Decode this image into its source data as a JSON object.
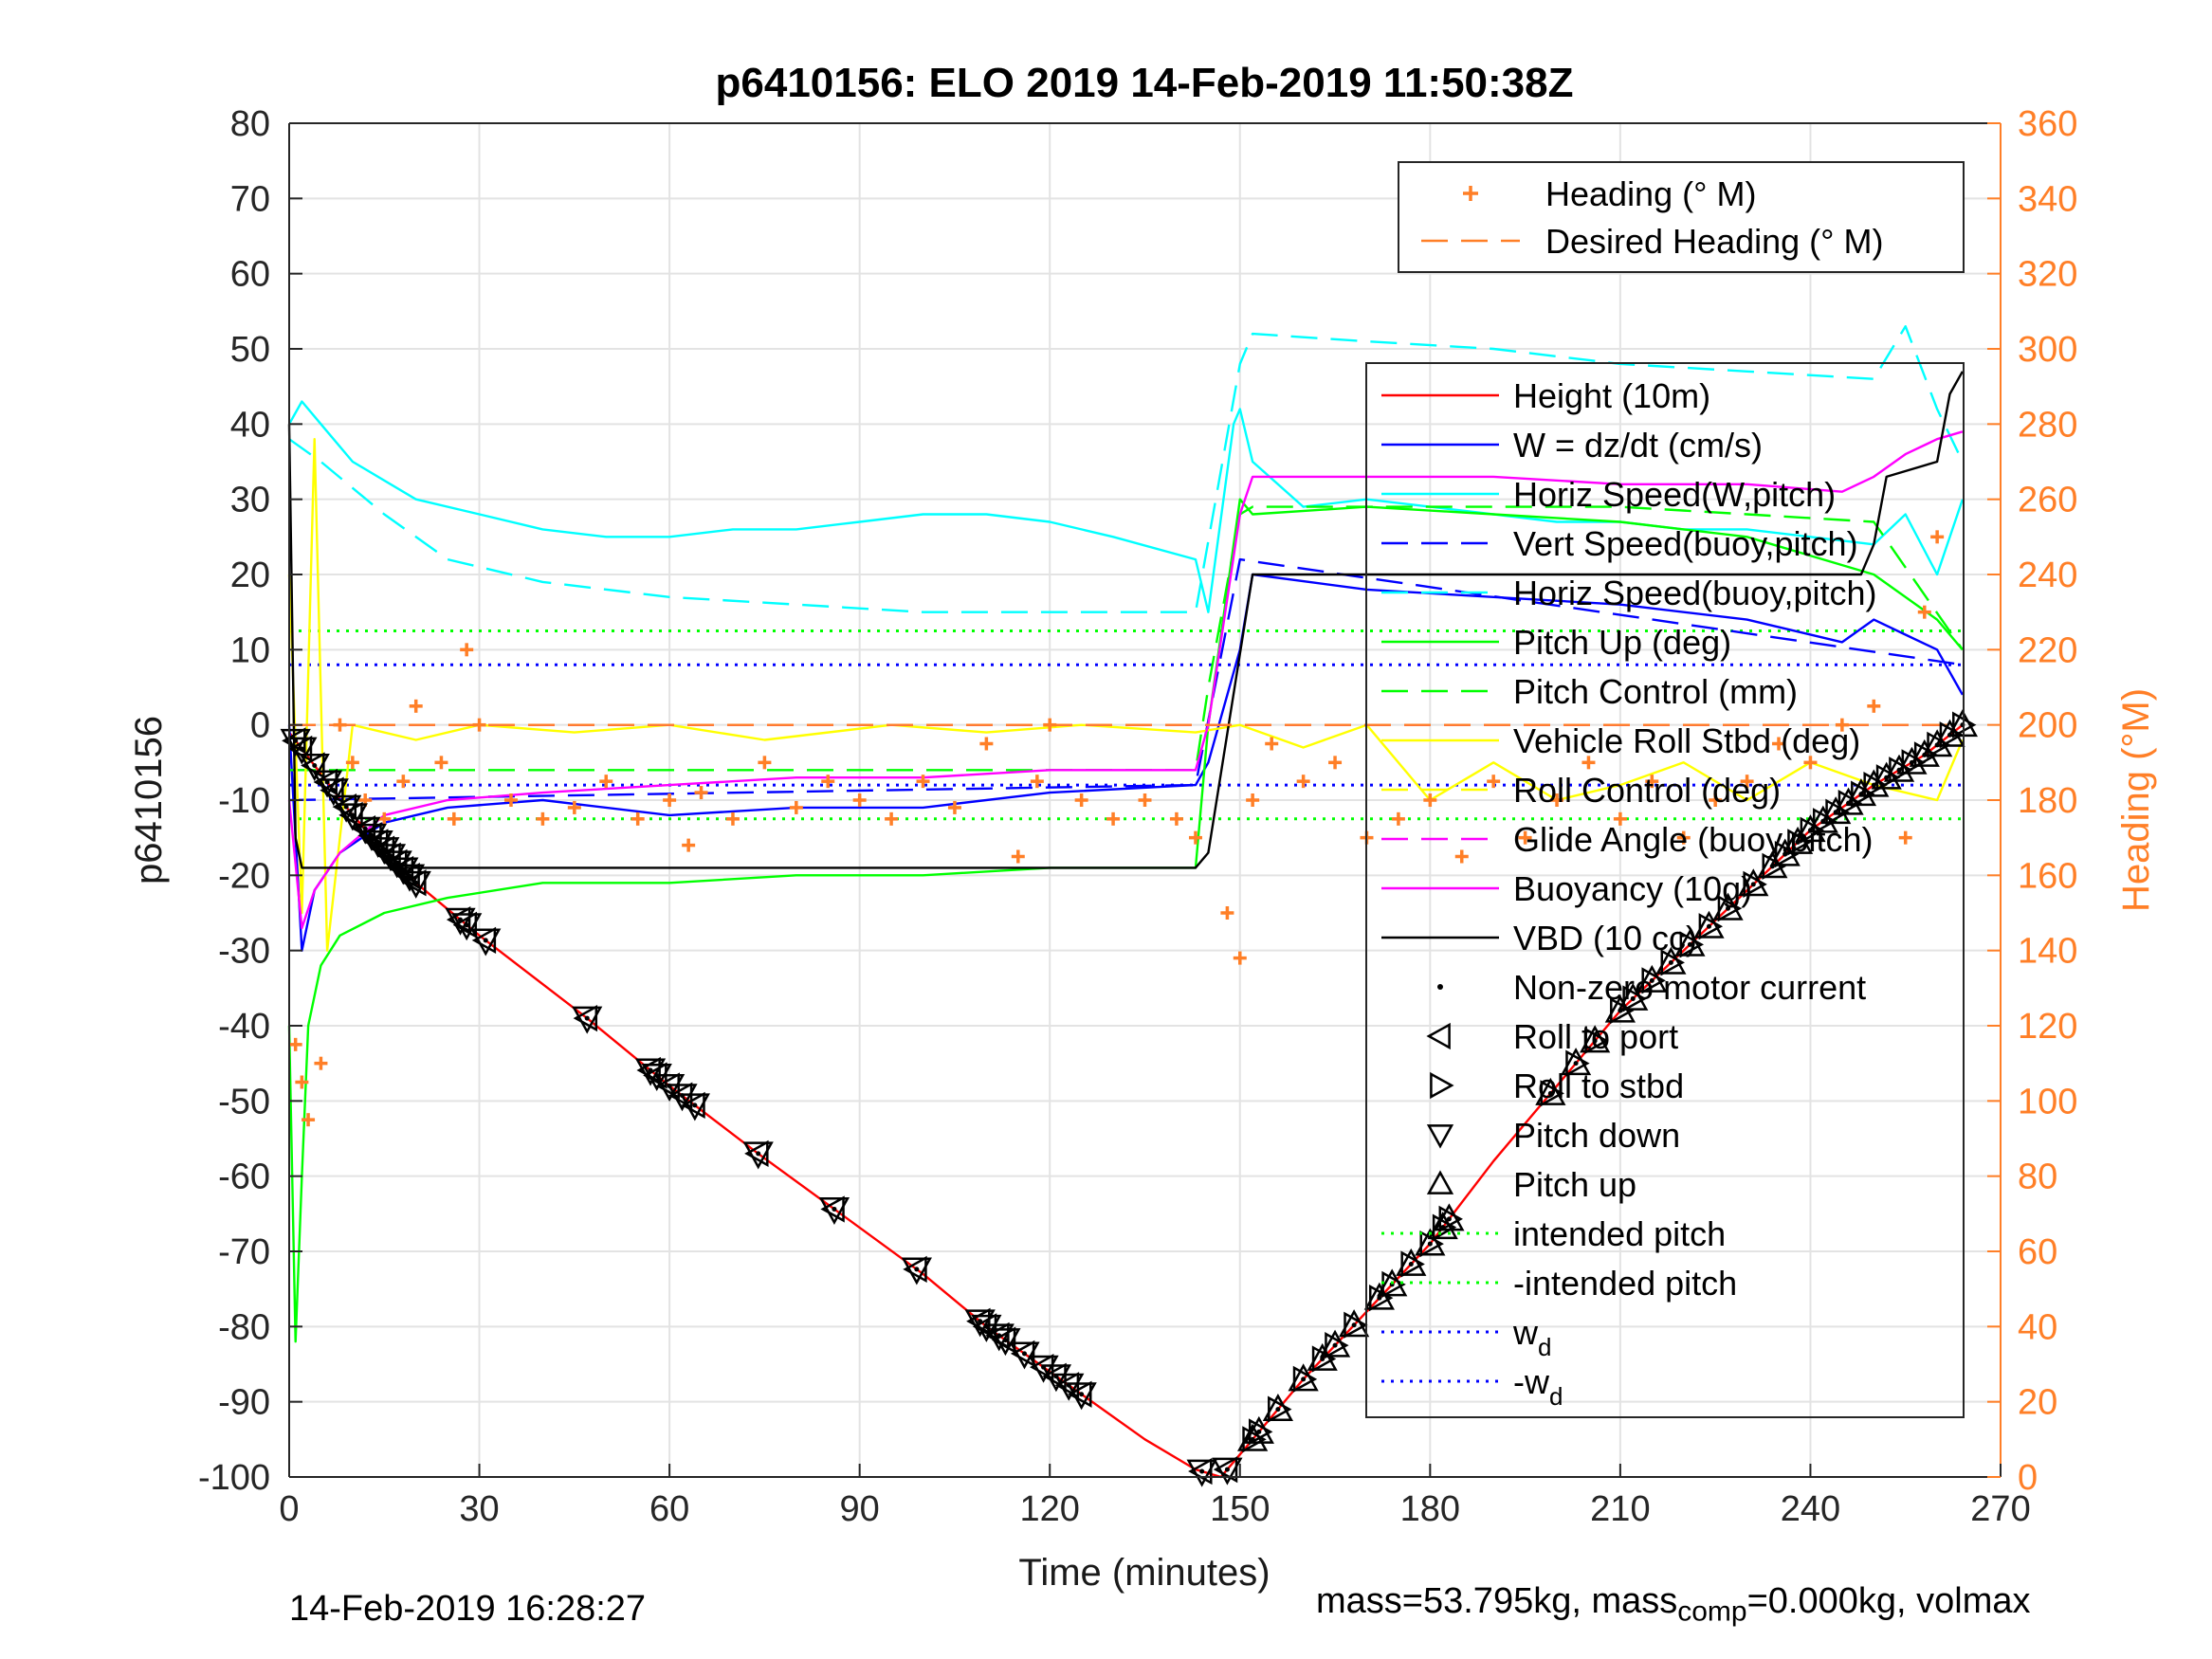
{
  "chart_data": {
    "type": "line",
    "title": "p6410156: ELO 2019 14-Feb-2019 11:50:38Z",
    "xlabel": "Time (minutes)",
    "ylabel": "p6410156",
    "y2label": "Heading (°M)",
    "xlim": [
      0,
      270
    ],
    "ylim": [
      -100,
      80
    ],
    "y2lim": [
      0,
      360
    ],
    "xticks": [
      0,
      30,
      60,
      90,
      120,
      150,
      180,
      210,
      240,
      270
    ],
    "yticks": [
      -100,
      -90,
      -80,
      -70,
      -60,
      -50,
      -40,
      -30,
      -20,
      -10,
      0,
      10,
      20,
      30,
      40,
      50,
      60,
      70,
      80
    ],
    "y2ticks": [
      0,
      20,
      40,
      60,
      80,
      100,
      120,
      140,
      160,
      180,
      200,
      220,
      240,
      260,
      280,
      300,
      320,
      340,
      360
    ],
    "grid": true,
    "legend_top": [
      {
        "label": "Heading (° M)",
        "color": "#ff7f27",
        "style": "plus"
      },
      {
        "label": "Desired Heading (° M)",
        "color": "#ff7f27",
        "style": "dash"
      }
    ],
    "legend_main": [
      {
        "label": "Height (10m)",
        "color": "#ff0000",
        "style": "solid"
      },
      {
        "label": "W = dz/dt (cm/s)",
        "color": "#0000ff",
        "style": "solid"
      },
      {
        "label": "Horiz Speed(W,pitch)",
        "color": "#00ffff",
        "style": "solid"
      },
      {
        "label": "Vert Speed(buoy,pitch)",
        "color": "#0000ff",
        "style": "dash"
      },
      {
        "label": "Horiz Speed(buoy,pitch)",
        "color": "#00ffff",
        "style": "dash"
      },
      {
        "label": "Pitch Up (deg)",
        "color": "#00ff00",
        "style": "solid"
      },
      {
        "label": "Pitch Control (mm)",
        "color": "#00ff00",
        "style": "dash"
      },
      {
        "label": "Vehicle Roll Stbd (deg)",
        "color": "#ffff00",
        "style": "solid"
      },
      {
        "label": "Roll Control (deg)",
        "color": "#ffff00",
        "style": "dash"
      },
      {
        "label": "Glide Angle (buoy,pitch)",
        "color": "#ff00ff",
        "style": "dash"
      },
      {
        "label": "Buoyancy (10g)",
        "color": "#ff00ff",
        "style": "solid"
      },
      {
        "label": "VBD (10 cc)",
        "color": "#000000",
        "style": "solid"
      },
      {
        "label": "Non-zero motor current",
        "color": "#000000",
        "style": "dot"
      },
      {
        "label": "Roll to port",
        "color": "#000000",
        "style": "tri-left"
      },
      {
        "label": "Roll to stbd",
        "color": "#000000",
        "style": "tri-right"
      },
      {
        "label": "Pitch down",
        "color": "#000000",
        "style": "tri-down"
      },
      {
        "label": "Pitch up",
        "color": "#000000",
        "style": "tri-up"
      },
      {
        "label": "intended pitch",
        "color": "#00ff00",
        "style": "dotted"
      },
      {
        "label": "-intended pitch",
        "color": "#00ff00",
        "style": "dotted"
      },
      {
        "label": "w",
        "sub": "d",
        "color": "#0000ff",
        "style": "dotted"
      },
      {
        "label": "-w",
        "sub": "d",
        "color": "#0000ff",
        "style": "dotted"
      }
    ],
    "series": [
      {
        "name": "Height (10m)",
        "color": "#ff0000",
        "x": [
          0,
          10,
          20,
          30,
          47,
          60,
          74,
          87,
          100,
          110,
          120,
          125,
          135,
          143,
          147,
          150,
          160,
          170,
          180,
          190,
          200,
          210,
          220,
          230,
          240,
          250,
          258,
          264
        ],
        "y": [
          -1,
          -12,
          -21,
          -28,
          -39,
          -48,
          -57,
          -65,
          -73,
          -80,
          -86,
          -89,
          -95,
          -99,
          -100,
          -97,
          -87,
          -78,
          -69,
          -58,
          -48,
          -38,
          -30,
          -22,
          -14,
          -8,
          -4,
          0
        ]
      },
      {
        "name": "W = dz/dt (cm/s)",
        "color": "#0000ff",
        "x": [
          0,
          2,
          4,
          8,
          15,
          25,
          40,
          60,
          80,
          100,
          120,
          143,
          145,
          150,
          152,
          170,
          190,
          210,
          230,
          245,
          250,
          255,
          260,
          264
        ],
        "y": [
          0,
          -30,
          -22,
          -17,
          -13,
          -11,
          -10,
          -12,
          -11,
          -11,
          -9,
          -8,
          -5,
          10,
          20,
          18,
          17,
          16,
          14,
          11,
          14,
          12,
          10,
          4
        ]
      },
      {
        "name": "Horiz Speed(W,pitch)",
        "color": "#00ffff",
        "x": [
          0,
          2,
          5,
          10,
          20,
          30,
          40,
          50,
          60,
          70,
          80,
          90,
          100,
          110,
          120,
          130,
          143,
          145,
          149,
          150,
          152,
          160,
          170,
          180,
          190,
          200,
          210,
          220,
          230,
          240,
          250,
          255,
          260,
          264
        ],
        "y": [
          40,
          43,
          40,
          35,
          30,
          28,
          26,
          25,
          25,
          26,
          26,
          27,
          28,
          28,
          27,
          25,
          22,
          15,
          40,
          42,
          35,
          29,
          30,
          29,
          28,
          27,
          27,
          26,
          26,
          25,
          24,
          28,
          20,
          30
        ]
      },
      {
        "name": "Vert Speed(buoy,pitch)",
        "color": "#0000ff",
        "x": [
          0,
          143,
          150,
          264
        ],
        "y": [
          -10,
          -8,
          22,
          8
        ]
      },
      {
        "name": "Horiz Speed(buoy,pitch)",
        "color": "#00ffff",
        "x": [
          0,
          5,
          15,
          25,
          40,
          60,
          80,
          100,
          120,
          143,
          150,
          152,
          170,
          190,
          210,
          230,
          250,
          255,
          260,
          264
        ],
        "y": [
          38,
          35,
          28,
          22,
          19,
          17,
          16,
          15,
          15,
          15,
          48,
          52,
          51,
          50,
          48,
          47,
          46,
          53,
          42,
          35
        ]
      },
      {
        "name": "Pitch Up (deg)",
        "color": "#00ff00",
        "x": [
          0,
          1,
          2,
          3,
          5,
          8,
          15,
          25,
          40,
          60,
          80,
          100,
          120,
          143,
          145,
          150,
          152,
          170,
          190,
          210,
          230,
          250,
          260,
          264
        ],
        "y": [
          -40,
          -82,
          -60,
          -40,
          -32,
          -28,
          -25,
          -23,
          -21,
          -21,
          -20,
          -20,
          -19,
          -19,
          0,
          30,
          28,
          29,
          28,
          27,
          25,
          20,
          14,
          10
        ]
      },
      {
        "name": "Pitch Control (mm)",
        "color": "#00ff00",
        "x": [
          0,
          143,
          145,
          150,
          152,
          170,
          190,
          210,
          230,
          250,
          264
        ],
        "y": [
          -6,
          -6,
          5,
          28,
          29,
          29,
          29,
          29,
          28,
          27,
          10
        ]
      },
      {
        "name": "Vehicle Roll Stbd (deg)",
        "color": "#ffff00",
        "x": [
          0,
          2,
          4,
          6,
          10,
          20,
          30,
          45,
          60,
          75,
          95,
          110,
          125,
          143,
          150,
          160,
          170,
          180,
          190,
          200,
          210,
          220,
          230,
          240,
          250,
          260,
          264
        ],
        "y": [
          20,
          -25,
          38,
          -30,
          0,
          -2,
          0,
          -1,
          0,
          -2,
          0,
          -1,
          0,
          -1,
          0,
          -3,
          0,
          -10,
          -5,
          -10,
          -8,
          -5,
          -10,
          -5,
          -8,
          -10,
          -2
        ]
      },
      {
        "name": "Roll Control (deg)",
        "color": "#ffff00",
        "x": [
          0,
          264
        ],
        "y": [
          0,
          0
        ]
      },
      {
        "name": "Glide Angle (buoy,pitch)",
        "color": "#ff00ff",
        "x": [
          0,
          264
        ],
        "y": [
          0,
          0
        ]
      },
      {
        "name": "Buoyancy (10g)",
        "color": "#ff00ff",
        "x": [
          0,
          2,
          4,
          8,
          15,
          25,
          40,
          60,
          80,
          100,
          120,
          143,
          145,
          150,
          152,
          170,
          190,
          210,
          230,
          245,
          250,
          255,
          260,
          264
        ],
        "y": [
          -10,
          -27,
          -22,
          -17,
          -12,
          -10,
          -9,
          -8,
          -7,
          -7,
          -6,
          -6,
          0,
          28,
          33,
          33,
          33,
          32,
          32,
          31,
          33,
          36,
          38,
          39
        ]
      },
      {
        "name": "VBD (10 cc)",
        "color": "#000000",
        "x": [
          0,
          1,
          2,
          20,
          60,
          100,
          143,
          145,
          152,
          248,
          250,
          252,
          260,
          262,
          264
        ],
        "y": [
          40,
          -15,
          -19,
          -19,
          -19,
          -19,
          -19,
          -17,
          20,
          20,
          24,
          33,
          35,
          44,
          47
        ]
      },
      {
        "name": "intended pitch",
        "color": "#00ff00",
        "x": [
          0,
          264
        ],
        "y": [
          12.5,
          12.5
        ]
      },
      {
        "name": "-intended pitch",
        "color": "#00ff00",
        "x": [
          0,
          264
        ],
        "y": [
          -12.5,
          -12.5
        ]
      },
      {
        "name": "w_d",
        "color": "#0000ff",
        "x": [
          0,
          264
        ],
        "y": [
          8,
          8
        ]
      },
      {
        "name": "-w_d",
        "color": "#0000ff",
        "x": [
          0,
          264
        ],
        "y": [
          -8,
          -8
        ]
      }
    ],
    "heading_points": {
      "name": "Heading (° M)",
      "color": "#ff7f27",
      "x": [
        1,
        2,
        3,
        5,
        8,
        10,
        12,
        15,
        18,
        20,
        24,
        26,
        28,
        30,
        35,
        40,
        45,
        50,
        55,
        60,
        63,
        65,
        70,
        75,
        80,
        85,
        90,
        95,
        100,
        105,
        110,
        115,
        118,
        120,
        125,
        130,
        135,
        140,
        143,
        148,
        150,
        152,
        155,
        160,
        165,
        170,
        175,
        180,
        185,
        190,
        195,
        200,
        205,
        210,
        215,
        220,
        225,
        230,
        235,
        240,
        245,
        250,
        255,
        258,
        260
      ],
      "y": [
        115,
        105,
        95,
        110,
        200,
        190,
        180,
        175,
        185,
        205,
        190,
        175,
        220,
        200,
        180,
        175,
        178,
        185,
        175,
        180,
        168,
        182,
        175,
        190,
        178,
        185,
        180,
        175,
        185,
        178,
        195,
        165,
        185,
        200,
        180,
        175,
        180,
        175,
        170,
        150,
        138,
        180,
        195,
        185,
        190,
        170,
        175,
        180,
        165,
        185,
        170,
        180,
        190,
        175,
        185,
        170,
        180,
        185,
        195,
        190,
        200,
        205,
        170,
        230,
        250
      ]
    },
    "desired_heading": {
      "name": "Desired Heading (° M)",
      "color": "#ff7f27",
      "x": [
        0,
        264
      ],
      "y": [
        200,
        200
      ]
    },
    "markers": {
      "descent_x": [
        1,
        2,
        4,
        6,
        7,
        9,
        10,
        12,
        13,
        14,
        15,
        16,
        17,
        18,
        19,
        20,
        27,
        28,
        31,
        47,
        57,
        58,
        60,
        62,
        64,
        74,
        86,
        99,
        109,
        110,
        112,
        113,
        116,
        119,
        121,
        123,
        125,
        144,
        148
      ],
      "ascent_x": [
        152,
        153,
        156,
        160,
        163,
        165,
        168,
        172,
        174,
        177,
        180,
        182,
        183,
        199,
        203,
        206,
        210,
        212,
        215,
        218,
        221,
        224,
        227,
        231,
        234,
        236,
        238,
        240,
        242,
        244,
        246,
        248,
        250,
        252,
        254,
        256,
        258,
        260,
        262,
        264
      ]
    }
  },
  "footer": {
    "datetime": "14-Feb-2019 16:28:27",
    "mass_text_a": "mass=53.795kg, mass",
    "mass_sub": "comp",
    "mass_text_b": "=0.000kg, volmax"
  }
}
